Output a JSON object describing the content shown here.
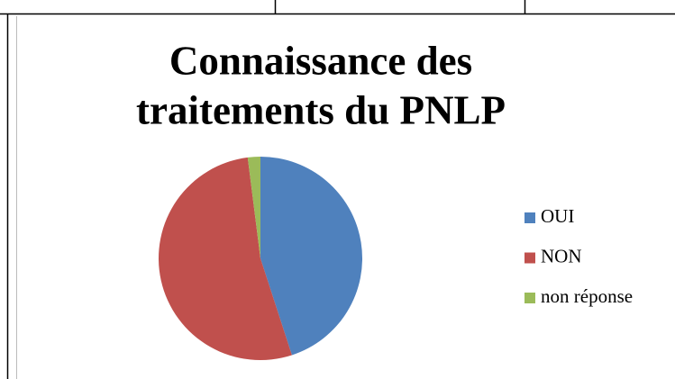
{
  "chart_data": {
    "type": "pie",
    "title": [
      "Connaissance des",
      "traitements du PNLP"
    ],
    "categories": [
      "OUI",
      "NON",
      "non réponse"
    ],
    "values": [
      45,
      53,
      2
    ],
    "colors": [
      "#4f81bd",
      "#c0504d",
      "#9bbb59"
    ],
    "legend": "right"
  }
}
